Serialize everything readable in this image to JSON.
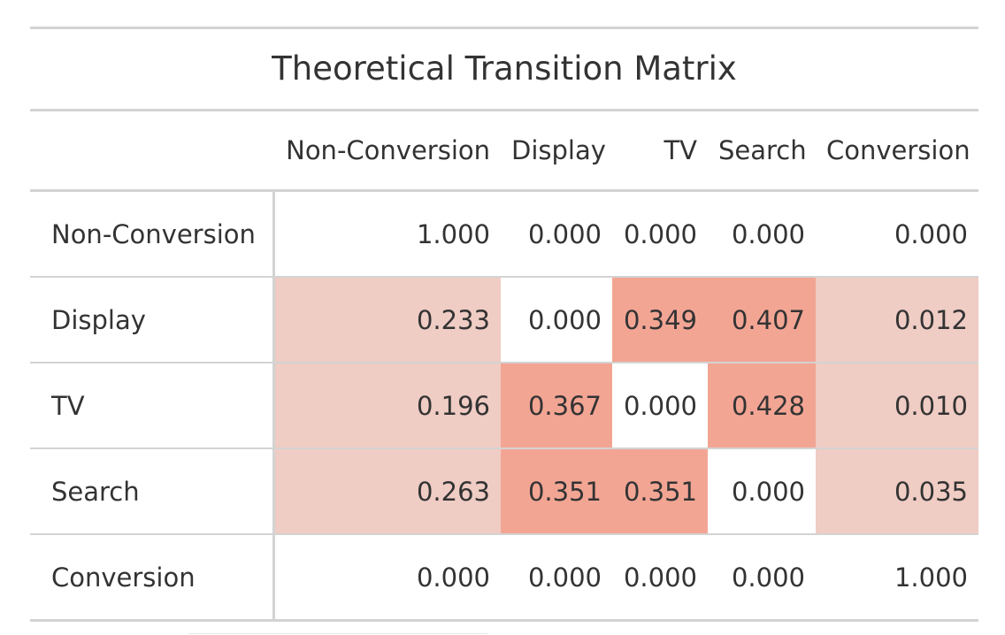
{
  "chart_data": {
    "type": "table",
    "title": "Theoretical Transition Matrix",
    "columns": [
      "Non-Conversion",
      "Display",
      "TV",
      "Search",
      "Conversion"
    ],
    "rows": [
      {
        "label": "Non-Conversion",
        "values": [
          "1.000",
          "0.000",
          "0.000",
          "0.000",
          "0.000"
        ]
      },
      {
        "label": "Display",
        "values": [
          "0.233",
          "0.000",
          "0.349",
          "0.407",
          "0.012"
        ]
      },
      {
        "label": "TV",
        "values": [
          "0.196",
          "0.367",
          "0.000",
          "0.428",
          "0.010"
        ]
      },
      {
        "label": "Search",
        "values": [
          "0.263",
          "0.351",
          "0.351",
          "0.000",
          "0.035"
        ]
      },
      {
        "label": "Conversion",
        "values": [
          "0.000",
          "0.000",
          "0.000",
          "0.000",
          "1.000"
        ]
      }
    ],
    "cell_colors": [
      [
        "#ffffff",
        "#ffffff",
        "#ffffff",
        "#ffffff",
        "#ffffff"
      ],
      [
        "#efccc4",
        "#ffffff",
        "#f3a594",
        "#f3a594",
        "#efccc4"
      ],
      [
        "#efccc4",
        "#f3a594",
        "#ffffff",
        "#f3a594",
        "#efccc4"
      ],
      [
        "#efccc4",
        "#f3a594",
        "#f3a594",
        "#ffffff",
        "#efccc4"
      ],
      [
        "#ffffff",
        "#ffffff",
        "#ffffff",
        "#ffffff",
        "#ffffff"
      ]
    ]
  }
}
